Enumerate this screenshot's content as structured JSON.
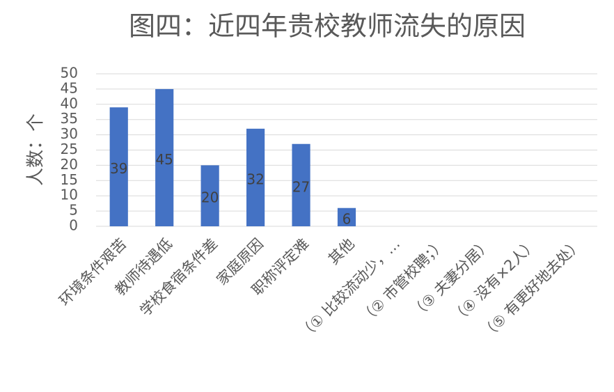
{
  "chart_data": {
    "type": "bar",
    "title": "图四：近四年贵校教师流失的原因",
    "y_label": "人数：个",
    "categories": [
      "环境条件艰苦",
      "教师待遇低",
      "学校食宿条件差",
      "家庭原因",
      "职称评定难",
      "其他",
      "（① 比较流动少，…",
      "（② 市管校聘；）",
      "（③ 夫妻分居）",
      "（④ 没有×2人）",
      "（⑤ 有更好地去处）"
    ],
    "values": [
      39,
      45,
      20,
      32,
      27,
      6,
      null,
      null,
      null,
      null,
      null
    ],
    "color": "#4472c4",
    "ylim": [
      0,
      50
    ],
    "yticks": [
      0,
      5,
      10,
      15,
      20,
      25,
      30,
      35,
      40,
      45,
      50
    ],
    "grid": true
  }
}
